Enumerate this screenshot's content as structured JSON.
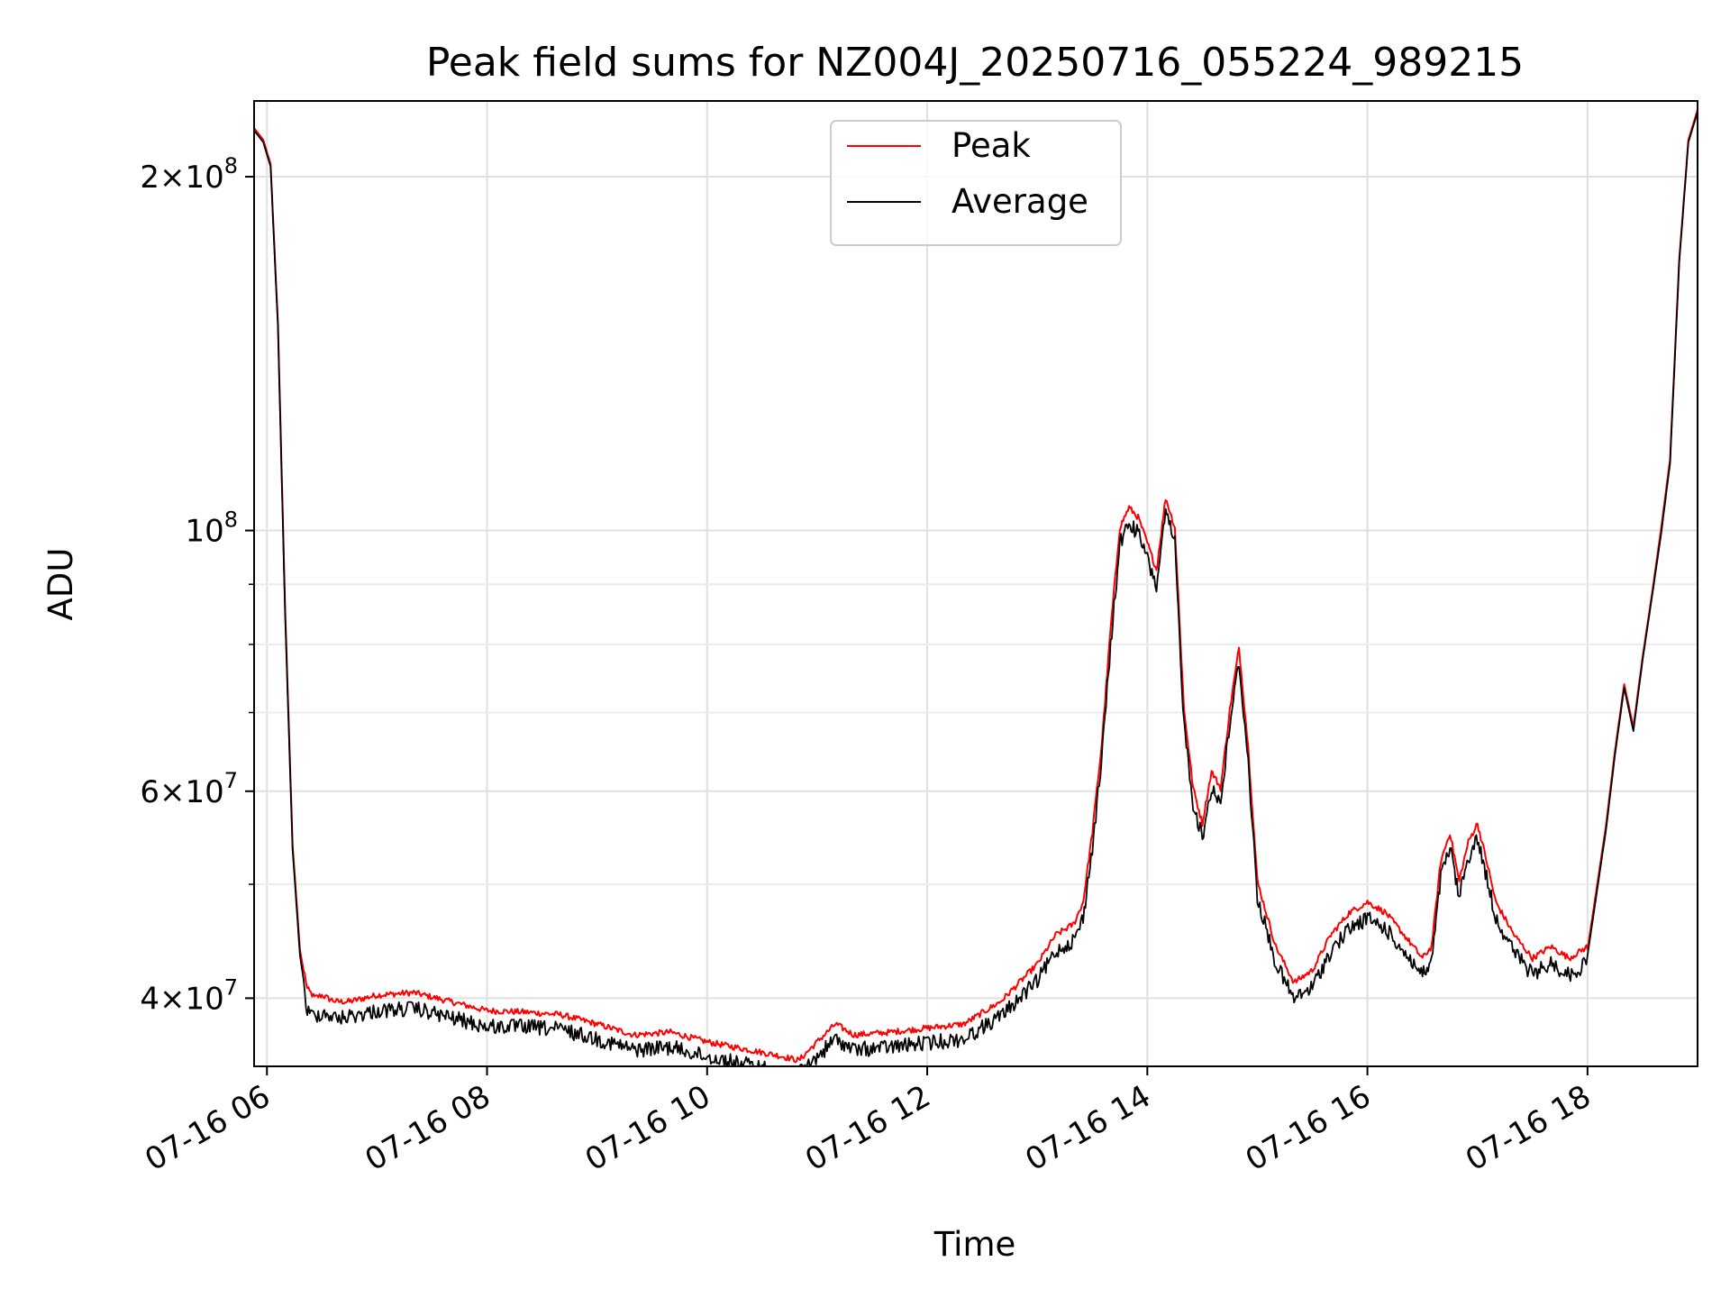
{
  "chart_data": {
    "type": "line",
    "title": "Peak field sums for NZ004J_20250716_055224_989215",
    "xlabel": "Time",
    "ylabel": "ADU",
    "yscale": "log",
    "xlim": [
      "07-16 05:53",
      "07-16 19:00"
    ],
    "ylim": [
      35000000,
      232000000
    ],
    "grid": true,
    "legend_position": "upper center",
    "x_ticks": [
      "07-16 06",
      "07-16 08",
      "07-16 10",
      "07-16 12",
      "07-16 14",
      "07-16 16",
      "07-16 18"
    ],
    "y_ticks": [
      {
        "value": 40000000,
        "base": "4×10",
        "exp": "7"
      },
      {
        "value": 60000000,
        "base": "6×10",
        "exp": "7"
      },
      {
        "value": 100000000,
        "base": "10",
        "exp": "8"
      },
      {
        "value": 200000000,
        "base": "2×10",
        "exp": "8"
      }
    ],
    "series": [
      {
        "name": "Peak",
        "color": "#ff0000",
        "x": [
          "07-16 05:53",
          "07-16 05:58",
          "07-16 06:02",
          "07-16 06:06",
          "07-16 06:10",
          "07-16 06:14",
          "07-16 06:18",
          "07-16 06:22",
          "07-16 06:26",
          "07-16 06:30",
          "07-16 06:34",
          "07-16 06:38",
          "07-16 06:45",
          "07-16 07:00",
          "07-16 07:20",
          "07-16 07:40",
          "07-16 08:00",
          "07-16 08:20",
          "07-16 08:40",
          "07-16 09:00",
          "07-16 09:20",
          "07-16 09:40",
          "07-16 10:00",
          "07-16 10:20",
          "07-16 10:40",
          "07-16 10:50",
          "07-16 11:00",
          "07-16 11:10",
          "07-16 11:20",
          "07-16 11:40",
          "07-16 12:00",
          "07-16 12:20",
          "07-16 12:40",
          "07-16 13:00",
          "07-16 13:10",
          "07-16 13:20",
          "07-16 13:25",
          "07-16 13:30",
          "07-16 13:35",
          "07-16 13:40",
          "07-16 13:45",
          "07-16 13:50",
          "07-16 13:55",
          "07-16 14:00",
          "07-16 14:05",
          "07-16 14:10",
          "07-16 14:15",
          "07-16 14:20",
          "07-16 14:25",
          "07-16 14:30",
          "07-16 14:35",
          "07-16 14:40",
          "07-16 14:45",
          "07-16 14:50",
          "07-16 14:55",
          "07-16 15:00",
          "07-16 15:10",
          "07-16 15:20",
          "07-16 15:30",
          "07-16 15:40",
          "07-16 15:50",
          "07-16 16:00",
          "07-16 16:10",
          "07-16 16:20",
          "07-16 16:30",
          "07-16 16:35",
          "07-16 16:40",
          "07-16 16:45",
          "07-16 16:50",
          "07-16 16:55",
          "07-16 17:00",
          "07-16 17:05",
          "07-16 17:10",
          "07-16 17:20",
          "07-16 17:30",
          "07-16 17:40",
          "07-16 17:50",
          "07-16 18:00",
          "07-16 18:10",
          "07-16 18:15",
          "07-16 18:20",
          "07-16 18:25",
          "07-16 18:30",
          "07-16 18:35",
          "07-16 18:40",
          "07-16 18:45",
          "07-16 18:50",
          "07-16 18:55",
          "07-16 19:00"
        ],
        "values": [
          220000000,
          215000000,
          205000000,
          150000000,
          85000000,
          54000000,
          44000000,
          40500000,
          39800000,
          40000000,
          39700000,
          39500000,
          39500000,
          40000000,
          40200000,
          39500000,
          38800000,
          38700000,
          38500000,
          37800000,
          37000000,
          37200000,
          36500000,
          36000000,
          35500000,
          35200000,
          36500000,
          37800000,
          37000000,
          37200000,
          37500000,
          37800000,
          39500000,
          42500000,
          45000000,
          46000000,
          48000000,
          55000000,
          65000000,
          82000000,
          100000000,
          104000000,
          102000000,
          97000000,
          92000000,
          106000000,
          100000000,
          70000000,
          60000000,
          56000000,
          62000000,
          60000000,
          70000000,
          79000000,
          65000000,
          50000000,
          44000000,
          41000000,
          42000000,
          45000000,
          47000000,
          48000000,
          47000000,
          45000000,
          43000000,
          44000000,
          52000000,
          55000000,
          50000000,
          54000000,
          56000000,
          52000000,
          48000000,
          45000000,
          43000000,
          44000000,
          43000000,
          44000000,
          56000000,
          65000000,
          74000000,
          68000000,
          78000000,
          88000000,
          100000000,
          115000000,
          170000000,
          215000000,
          228000000
        ]
      },
      {
        "name": "Average",
        "color": "#000000",
        "x": [
          "07-16 05:53",
          "07-16 05:58",
          "07-16 06:02",
          "07-16 06:06",
          "07-16 06:10",
          "07-16 06:14",
          "07-16 06:18",
          "07-16 06:22",
          "07-16 06:26",
          "07-16 06:30",
          "07-16 06:34",
          "07-16 06:38",
          "07-16 06:45",
          "07-16 07:00",
          "07-16 07:20",
          "07-16 07:40",
          "07-16 08:00",
          "07-16 08:20",
          "07-16 08:40",
          "07-16 09:00",
          "07-16 09:20",
          "07-16 09:40",
          "07-16 10:00",
          "07-16 10:20",
          "07-16 10:40",
          "07-16 10:50",
          "07-16 11:00",
          "07-16 11:10",
          "07-16 11:20",
          "07-16 11:40",
          "07-16 12:00",
          "07-16 12:20",
          "07-16 12:40",
          "07-16 13:00",
          "07-16 13:10",
          "07-16 13:20",
          "07-16 13:25",
          "07-16 13:30",
          "07-16 13:35",
          "07-16 13:40",
          "07-16 13:45",
          "07-16 13:50",
          "07-16 13:55",
          "07-16 14:00",
          "07-16 14:05",
          "07-16 14:10",
          "07-16 14:15",
          "07-16 14:20",
          "07-16 14:25",
          "07-16 14:30",
          "07-16 14:35",
          "07-16 14:40",
          "07-16 14:45",
          "07-16 14:50",
          "07-16 14:55",
          "07-16 15:00",
          "07-16 15:10",
          "07-16 15:20",
          "07-16 15:30",
          "07-16 15:40",
          "07-16 15:50",
          "07-16 16:00",
          "07-16 16:10",
          "07-16 16:20",
          "07-16 16:30",
          "07-16 16:35",
          "07-16 16:40",
          "07-16 16:45",
          "07-16 16:50",
          "07-16 16:55",
          "07-16 17:00",
          "07-16 17:05",
          "07-16 17:10",
          "07-16 17:20",
          "07-16 17:30",
          "07-16 17:40",
          "07-16 17:50",
          "07-16 18:00",
          "07-16 18:10",
          "07-16 18:15",
          "07-16 18:20",
          "07-16 18:25",
          "07-16 18:30",
          "07-16 18:35",
          "07-16 18:40",
          "07-16 18:45",
          "07-16 18:50",
          "07-16 18:55",
          "07-16 19:00"
        ],
        "values": [
          219000000,
          214000000,
          204000000,
          149000000,
          84000000,
          53500000,
          43500000,
          39500000,
          39200000,
          39500000,
          39300000,
          39000000,
          39200000,
          39600000,
          39800000,
          39100000,
          38400000,
          38400000,
          38200000,
          37500000,
          36700000,
          36900000,
          36200000,
          35700000,
          35200000,
          35000000,
          36200000,
          37500000,
          36700000,
          36900000,
          37200000,
          37500000,
          39200000,
          42000000,
          44500000,
          45500000,
          47500000,
          54500000,
          64500000,
          81000000,
          99000000,
          103000000,
          101000000,
          96000000,
          91000000,
          105000000,
          99000000,
          69500000,
          59500000,
          55500000,
          61500000,
          59500000,
          69500000,
          78500000,
          64500000,
          49500000,
          43500000,
          40500000,
          41500000,
          44500000,
          46500000,
          47500000,
          46500000,
          44500000,
          42500000,
          43500000,
          51500000,
          54500000,
          49500000,
          53500000,
          55500000,
          51500000,
          47500000,
          44500000,
          42500000,
          43500000,
          42500000,
          43500000,
          55500000,
          64500000,
          73500000,
          67500000,
          77500000,
          87500000,
          99000000,
          114000000,
          169000000,
          214000000,
          227000000
        ]
      }
    ]
  }
}
